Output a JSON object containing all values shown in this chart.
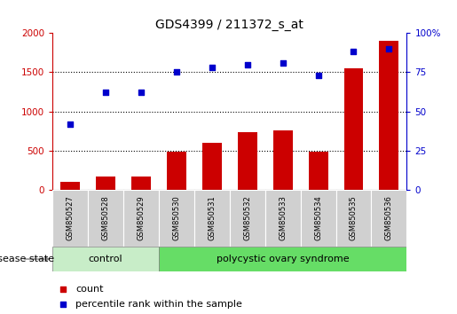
{
  "title": "GDS4399 / 211372_s_at",
  "samples": [
    "GSM850527",
    "GSM850528",
    "GSM850529",
    "GSM850530",
    "GSM850531",
    "GSM850532",
    "GSM850533",
    "GSM850534",
    "GSM850535",
    "GSM850536"
  ],
  "counts": [
    100,
    175,
    175,
    490,
    600,
    740,
    760,
    490,
    1550,
    1900
  ],
  "percentiles": [
    42,
    62,
    62,
    75,
    78,
    80,
    81,
    73,
    88,
    90
  ],
  "bar_color": "#cc0000",
  "dot_color": "#0000cc",
  "left_ylim": [
    0,
    2000
  ],
  "right_ylim": [
    0,
    100
  ],
  "left_yticks": [
    0,
    500,
    1000,
    1500,
    2000
  ],
  "right_yticks": [
    0,
    25,
    50,
    75,
    100
  ],
  "right_yticklabels": [
    "0",
    "25",
    "50",
    "75",
    "100%"
  ],
  "grid_values": [
    500,
    1000,
    1500
  ],
  "n_control": 3,
  "n_pcos": 7,
  "control_label": "control",
  "pcos_label": "polycystic ovary syndrome",
  "disease_state_label": "disease state",
  "legend_count": "count",
  "legend_percentile": "percentile rank within the sample",
  "control_color": "#c8edc8",
  "pcos_color": "#66dd66",
  "tick_bg_color": "#d0d0d0",
  "bar_width": 0.55
}
